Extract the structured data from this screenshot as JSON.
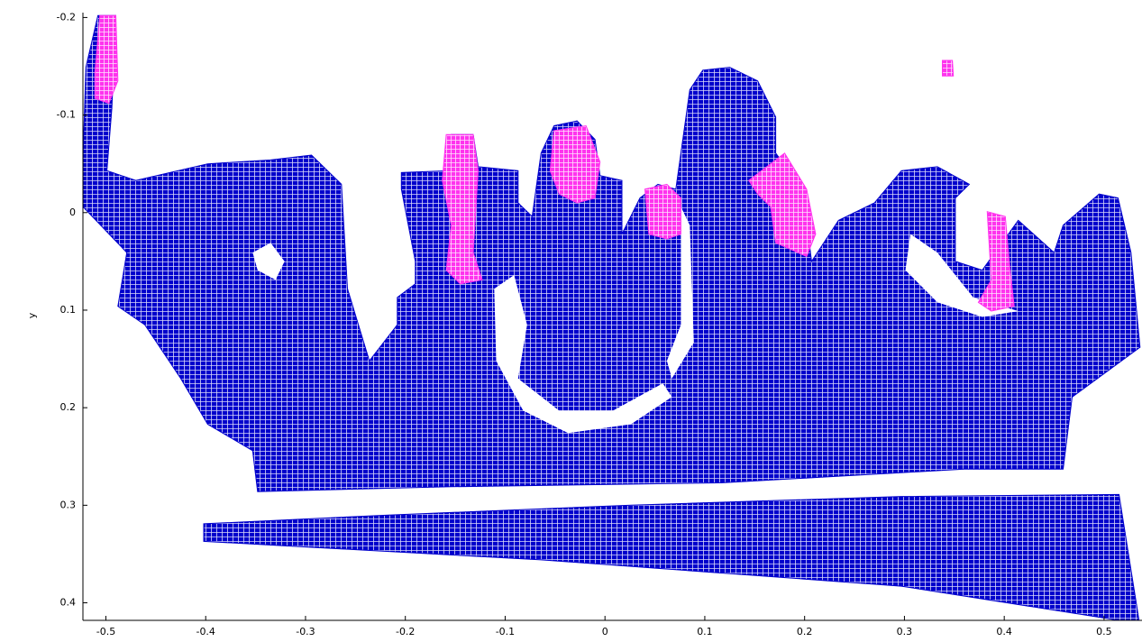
{
  "chart_data": {
    "type": "point-cloud",
    "y_label": "y",
    "xlim": [
      -0.523,
      0.538
    ],
    "ylim": [
      -0.205,
      0.418
    ],
    "y_reversed": true,
    "xticks": [
      -0.5,
      -0.4,
      -0.3,
      -0.2,
      -0.1,
      0,
      0.1,
      0.2,
      0.3,
      0.4,
      0.5
    ],
    "yticks": [
      -0.2,
      -0.1,
      0,
      0.1,
      0.2,
      0.3,
      0.4
    ],
    "series": [
      {
        "color": "#0000cc",
        "rings": [
          {
            "x": [
              -0.523,
              -0.52,
              -0.508,
              -0.49,
              -0.494,
              -0.499,
              -0.47,
              -0.398,
              -0.335,
              -0.294,
              -0.264,
              -0.258,
              -0.236,
              -0.208,
              -0.208,
              -0.19,
              -0.19,
              -0.204,
              -0.204,
              -0.154,
              -0.154,
              -0.132,
              -0.127,
              -0.087,
              -0.087,
              -0.073,
              -0.064,
              -0.051,
              -0.028,
              -0.01,
              -0.005,
              0.017,
              0.017,
              0.035,
              0.053,
              0.071,
              0.085,
              0.098,
              0.125,
              0.153,
              0.171,
              0.171,
              0.198,
              0.207,
              0.234,
              0.27,
              0.297,
              0.333,
              0.365,
              0.351,
              0.351,
              0.378,
              0.414,
              0.45,
              0.459,
              0.495,
              0.514,
              0.527,
              0.536,
              0.468,
              0.459,
              0.36,
              0.116,
              -0.154,
              -0.348,
              -0.353,
              -0.398,
              -0.425,
              -0.461,
              -0.488,
              -0.479,
              -0.523
            ],
            "y": [
              -0.056,
              -0.149,
              -0.202,
              -0.202,
              -0.107,
              -0.043,
              -0.033,
              -0.05,
              -0.054,
              -0.059,
              -0.029,
              0.078,
              0.152,
              0.115,
              0.087,
              0.073,
              0.05,
              -0.024,
              -0.041,
              -0.043,
              -0.08,
              -0.08,
              -0.047,
              -0.043,
              -0.01,
              0.004,
              -0.061,
              -0.089,
              -0.094,
              -0.075,
              -0.038,
              -0.033,
              0.022,
              -0.015,
              -0.029,
              -0.024,
              -0.126,
              -0.146,
              -0.149,
              -0.135,
              -0.098,
              -0.061,
              -0.024,
              0.05,
              0.008,
              -0.01,
              -0.043,
              -0.047,
              -0.029,
              -0.015,
              0.05,
              0.059,
              0.008,
              0.041,
              0.013,
              -0.019,
              -0.015,
              0.041,
              0.138,
              0.189,
              0.263,
              0.263,
              0.277,
              0.281,
              0.286,
              0.244,
              0.217,
              0.17,
              0.115,
              0.096,
              0.041,
              -0.006
            ]
          },
          {
            "x": [
              -0.402,
              -0.217,
              0.026,
              0.297,
              0.515,
              0.535,
              0.515,
              0.297,
              -0.064,
              -0.402
            ],
            "y": [
              0.319,
              0.31,
              0.3,
              0.291,
              0.289,
              0.418,
              0.418,
              0.383,
              0.356,
              0.337
            ]
          }
        ],
        "holes": [
          {
            "x": [
              -0.353,
              -0.335,
              -0.321,
              -0.33,
              -0.348
            ],
            "y": [
              0.041,
              0.031,
              0.05,
              0.069,
              0.059
            ]
          },
          {
            "x": [
              -0.111,
              -0.091,
              -0.078,
              -0.087,
              -0.046,
              0.008,
              0.058,
              0.067,
              0.026,
              -0.037,
              -0.082,
              -0.109
            ],
            "y": [
              0.078,
              0.064,
              0.115,
              0.17,
              0.203,
              0.203,
              0.175,
              0.189,
              0.217,
              0.226,
              0.203,
              0.152
            ]
          },
          {
            "x": [
              0.076,
              0.085,
              0.089,
              0.067,
              0.062,
              0.076
            ],
            "y": [
              -0.006,
              0.013,
              0.133,
              0.17,
              0.152,
              0.115
            ]
          },
          {
            "x": [
              0.306,
              0.333,
              0.369,
              0.414,
              0.378,
              0.333,
              0.301
            ],
            "y": [
              0.022,
              0.041,
              0.087,
              0.101,
              0.107,
              0.092,
              0.059
            ]
          }
        ]
      },
      {
        "color": "#ff33ee",
        "rings": [
          {
            "x": [
              -0.506,
              -0.49,
              -0.488,
              -0.497,
              -0.511,
              -0.511
            ],
            "y": [
              -0.202,
              -0.202,
              -0.135,
              -0.112,
              -0.117,
              -0.144
            ]
          },
          {
            "x": [
              -0.159,
              -0.132,
              -0.127,
              -0.132,
              -0.123,
              -0.145,
              -0.159,
              -0.154,
              -0.163
            ],
            "y": [
              -0.08,
              -0.08,
              -0.043,
              0.041,
              0.069,
              0.073,
              0.059,
              0.013,
              -0.033
            ]
          },
          {
            "x": [
              -0.051,
              -0.019,
              -0.005,
              -0.01,
              -0.028,
              -0.046,
              -0.055
            ],
            "y": [
              -0.084,
              -0.089,
              -0.052,
              -0.015,
              -0.01,
              -0.019,
              -0.043
            ]
          },
          {
            "x": [
              0.04,
              0.062,
              0.076,
              0.076,
              0.062,
              0.044
            ],
            "y": [
              -0.024,
              -0.029,
              -0.015,
              0.022,
              0.027,
              0.022
            ]
          },
          {
            "x": [
              0.144,
              0.18,
              0.202,
              0.211,
              0.202,
              0.171,
              0.166,
              0.153
            ],
            "y": [
              -0.033,
              -0.061,
              -0.024,
              0.022,
              0.045,
              0.031,
              -0.006,
              -0.019
            ]
          },
          {
            "x": [
              0.383,
              0.401,
              0.405,
              0.41,
              0.387,
              0.374,
              0.387
            ],
            "y": [
              -0.001,
              0.004,
              0.05,
              0.096,
              0.101,
              0.092,
              0.069
            ]
          },
          {
            "x": [
              0.338,
              0.348,
              0.349,
              0.338
            ],
            "y": [
              -0.156,
              -0.156,
              -0.14,
              -0.14
            ]
          }
        ],
        "holes": []
      }
    ]
  }
}
